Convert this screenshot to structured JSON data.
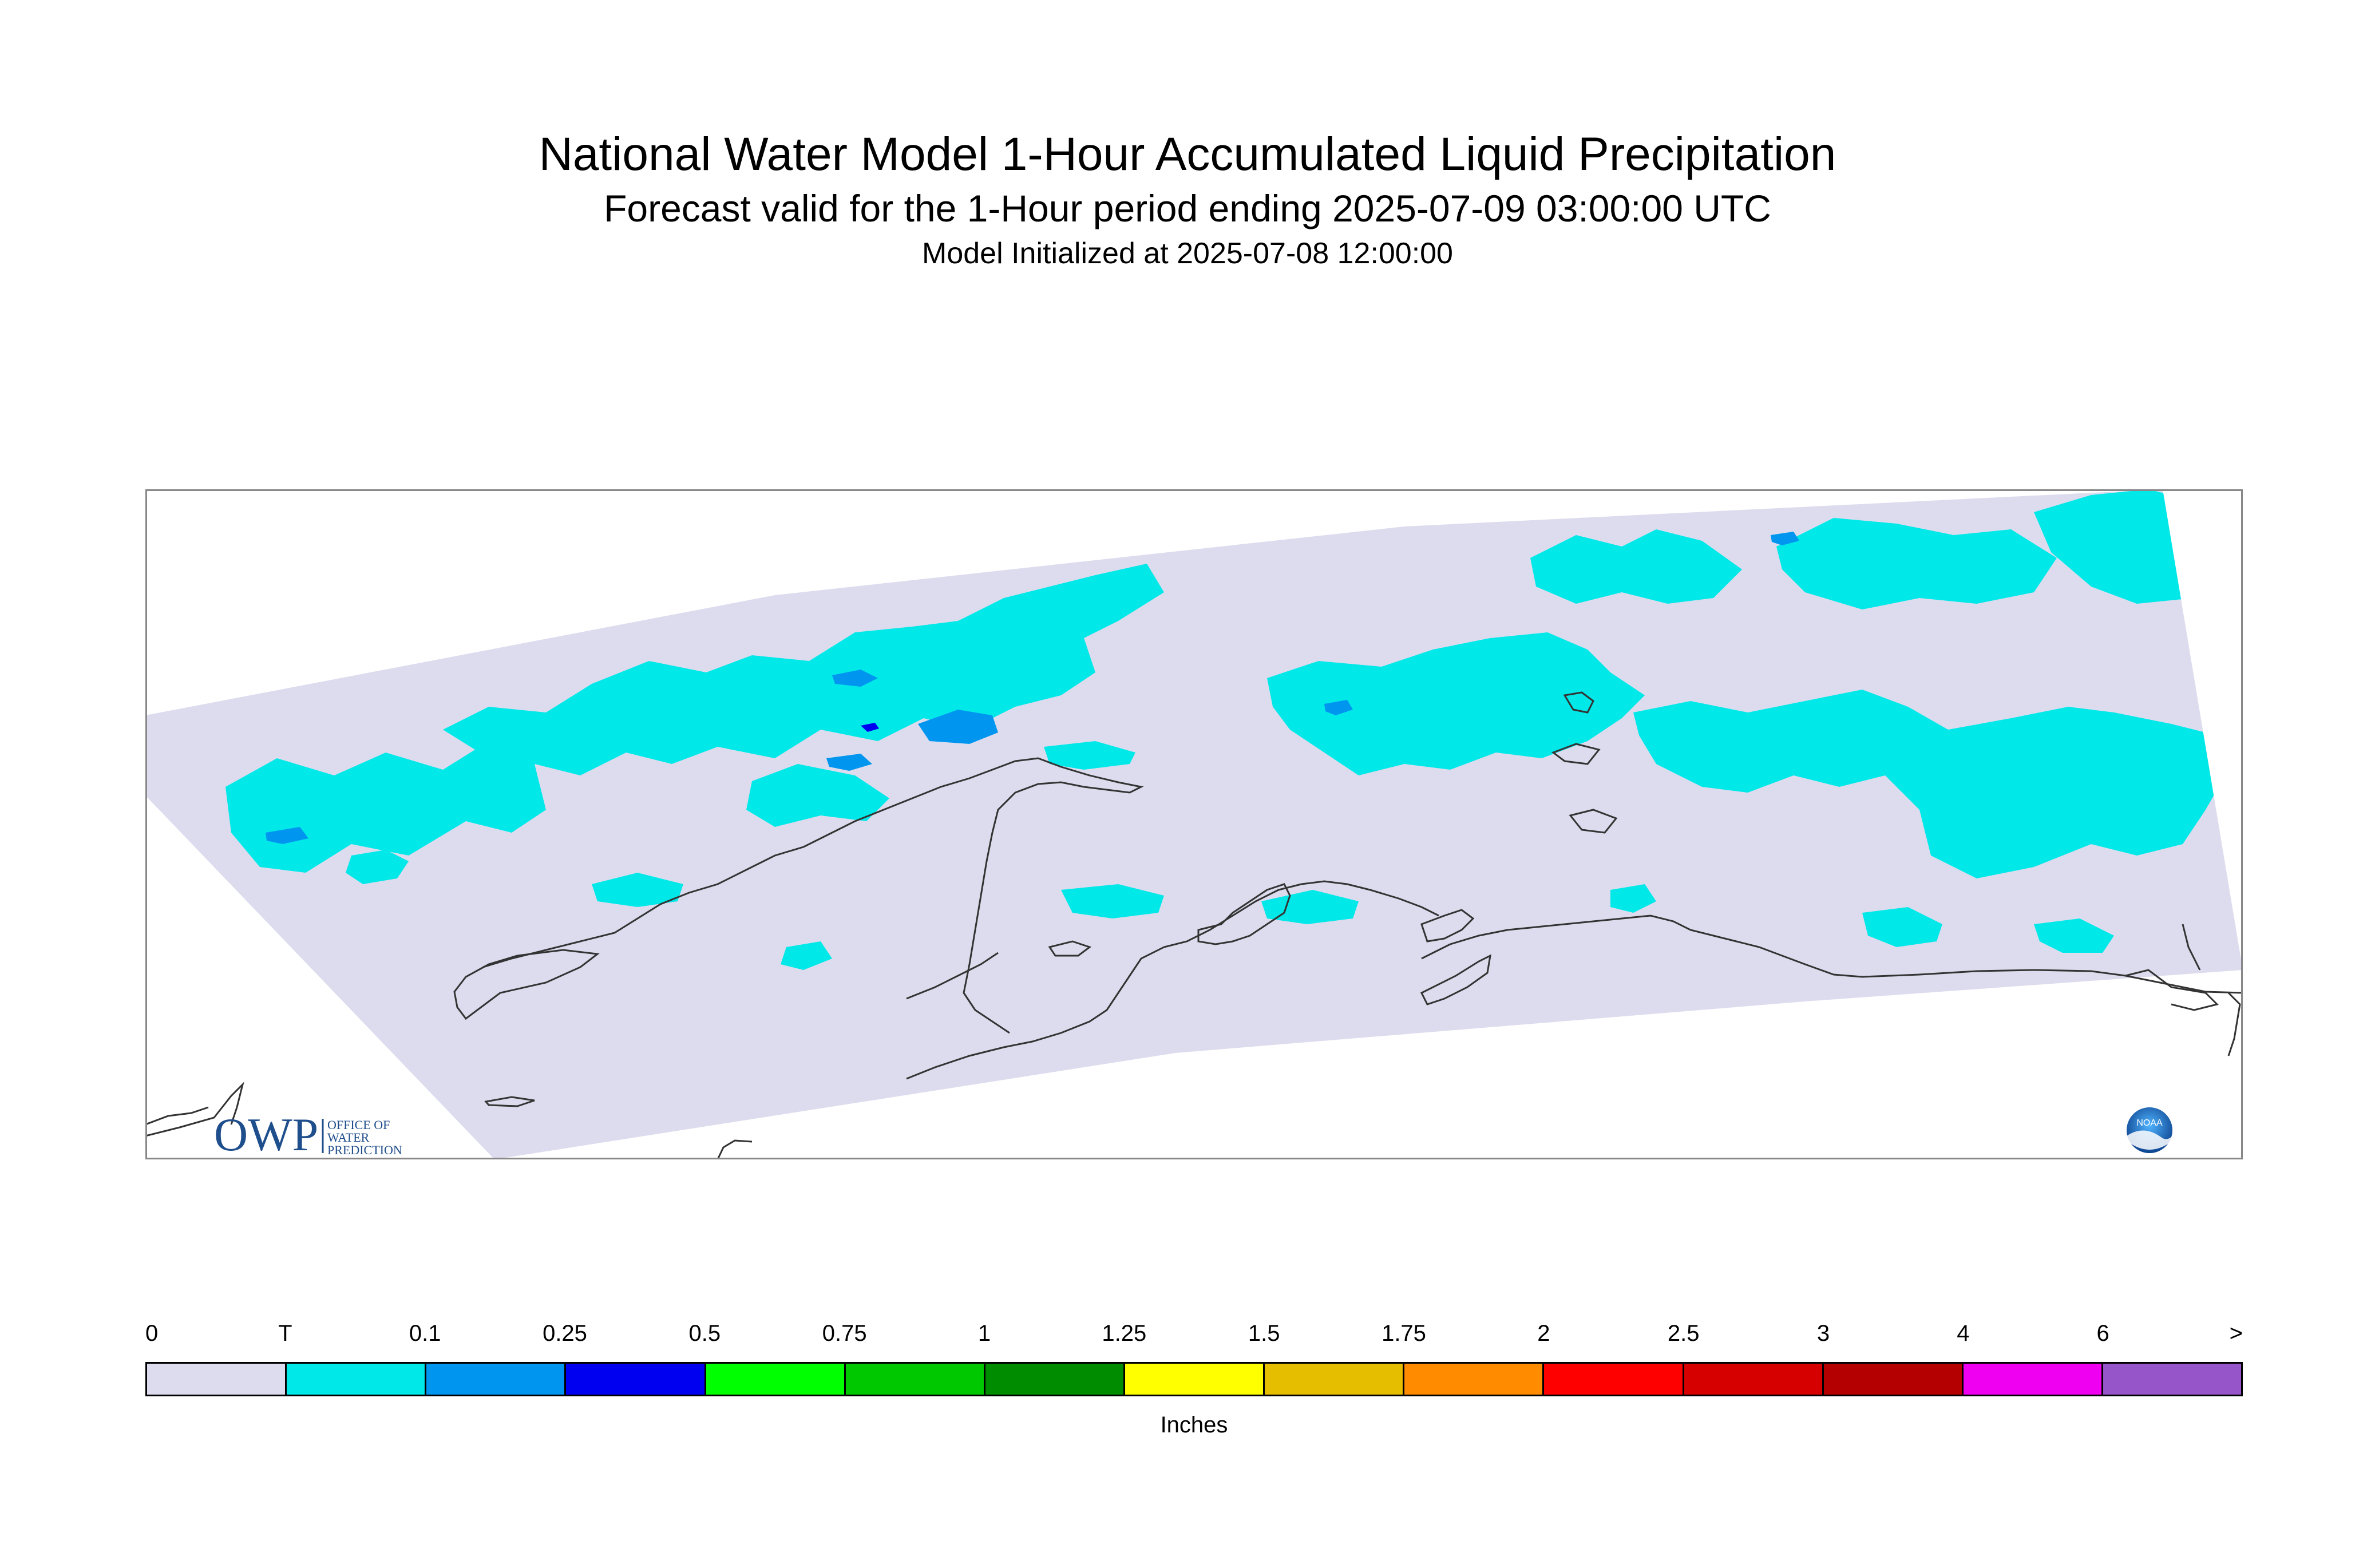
{
  "header": {
    "title": "National Water Model 1-Hour Accumulated Liquid Precipitation",
    "subtitle": "Forecast valid for the 1-Hour period ending 2025-07-09 03:00:00 UTC",
    "initialized": "Model Initialized at 2025-07-08 12:00:00"
  },
  "map": {
    "domain_fill": "#dcdcee",
    "coast_color": "#333333",
    "precip_colors": {
      "trace": "#00e8e8",
      "light": "#0096f0",
      "heavy": "#0000f0"
    }
  },
  "logos": {
    "owp": {
      "mark": "OWP",
      "lines": [
        "OFFICE OF",
        "WATER",
        "PREDICTION"
      ],
      "color": "#1f4e8c"
    },
    "noaa": {
      "text": "NOAA",
      "icon": "noaa-logo-icon"
    }
  },
  "legend": {
    "labels": [
      "0",
      "T",
      "0.1",
      "0.25",
      "0.5",
      "0.75",
      "1",
      "1.25",
      "1.5",
      "1.75",
      "2",
      "2.5",
      "3",
      "4",
      "6",
      ">"
    ],
    "colors": [
      "#dcdcee",
      "#00e8e8",
      "#0096f0",
      "#0000f0",
      "#00ff00",
      "#00c800",
      "#008c00",
      "#ffff00",
      "#e6be00",
      "#ff8c00",
      "#ff0000",
      "#d70000",
      "#b40000",
      "#f000f0",
      "#9655c8"
    ],
    "units": "Inches"
  }
}
